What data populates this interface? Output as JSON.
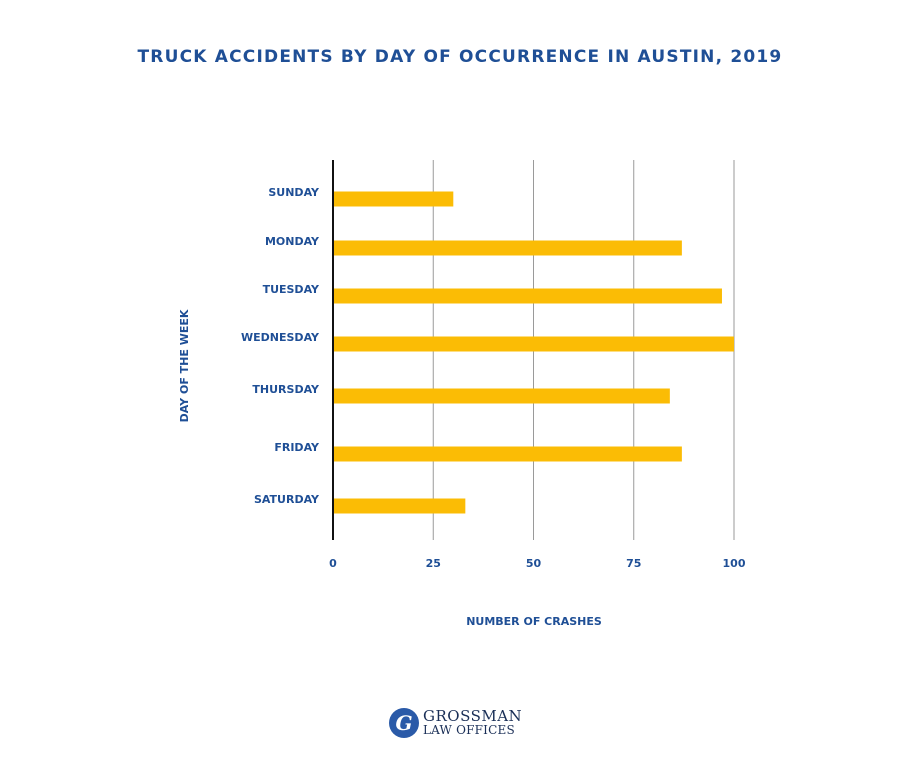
{
  "chart_data": {
    "type": "bar",
    "orientation": "horizontal",
    "title": "TRUCK ACCIDENTS BY DAY OF OCCURRENCE IN AUSTIN, 2019",
    "xlabel": "NUMBER OF CRASHES",
    "ylabel": "DAY OF THE WEEK",
    "categories": [
      "SUNDAY",
      "MONDAY",
      "TUESDAY",
      "WEDNESDAY",
      "THURSDAY",
      "FRIDAY",
      "SATURDAY"
    ],
    "values": [
      30,
      87,
      97,
      100,
      84,
      87,
      33
    ],
    "xlim": [
      0,
      100
    ],
    "xticks": [
      0,
      25,
      50,
      75,
      100
    ],
    "grid": true,
    "bar_color": "#fbbc05",
    "grid_color": "#9a9a9a",
    "axis_color": "#111111",
    "text_color": "#1f4f96"
  },
  "logo": {
    "mark": "G",
    "line1": "GROSSMAN",
    "line2": "LAW OFFICES"
  }
}
